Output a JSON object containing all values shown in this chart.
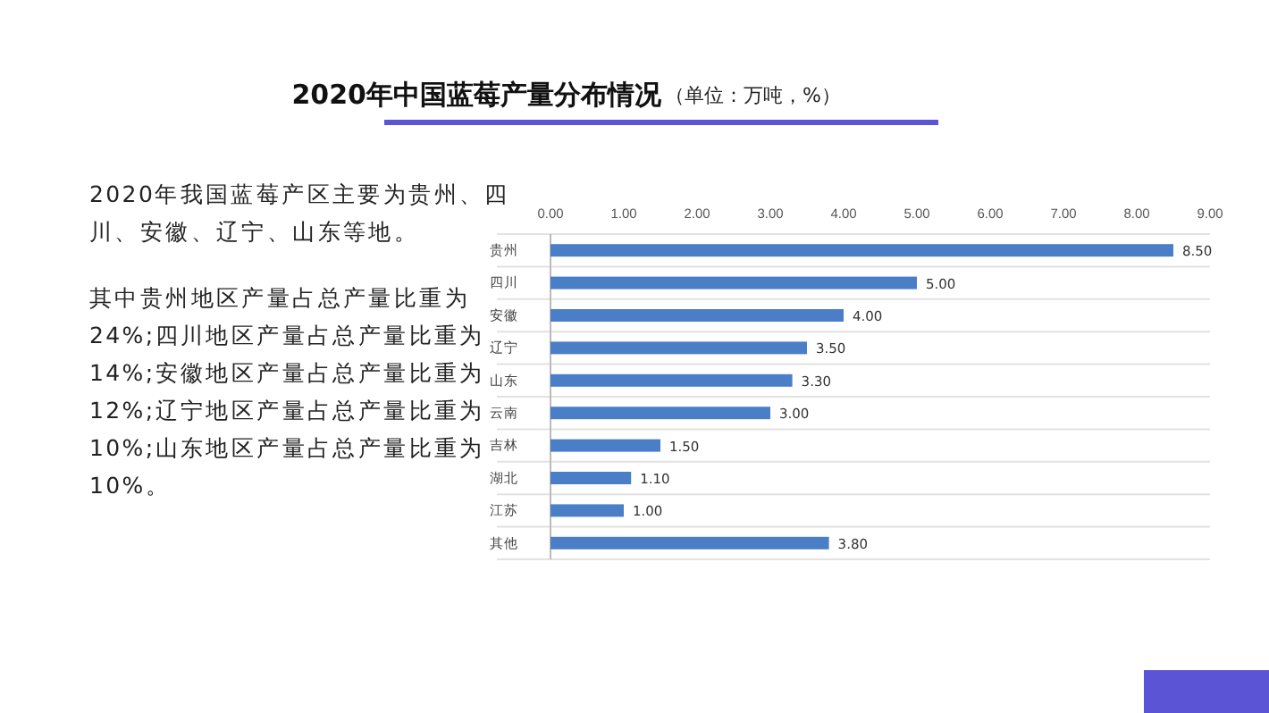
{
  "chart_data": {
    "type": "bar",
    "orientation": "horizontal",
    "title": "2020年中国蓝莓产量分布情况",
    "subtitle": "（单位：万吨，%）",
    "categories": [
      "贵州",
      "四川",
      "安徽",
      "辽宁",
      "山东",
      "云南",
      "吉林",
      "湖北",
      "江苏",
      "其他"
    ],
    "values": [
      8.5,
      5.0,
      4.0,
      3.5,
      3.3,
      3.0,
      1.5,
      1.1,
      1.0,
      3.8
    ],
    "value_labels": [
      "8.50",
      "5.00",
      "4.00",
      "3.50",
      "3.30",
      "3.00",
      "1.50",
      "1.10",
      "1.00",
      "3.80"
    ],
    "color": "#4a7fc8",
    "xlim": [
      0,
      9
    ],
    "xticks": [
      {
        "value": 0,
        "label": "0.00"
      },
      {
        "value": 1,
        "label": "1.00"
      },
      {
        "value": 2,
        "label": "2.00"
      },
      {
        "value": 3,
        "label": "3.00"
      },
      {
        "value": 4,
        "label": "4.00"
      },
      {
        "value": 5,
        "label": "5.00"
      },
      {
        "value": 6,
        "label": "6.00"
      },
      {
        "value": 7,
        "label": "7.00"
      },
      {
        "value": 8,
        "label": "8.00"
      },
      {
        "value": 9,
        "label": "9.00"
      }
    ],
    "grid": "y",
    "annotations": [
      "2020年我国蓝莓产区主要为贵州、四川、安徽、辽宁、山东等地。",
      "其中贵州地区产量占总产量比重为24%;四川地区产量占总产量比重为14%;安徽地区产量占总产量比重为12%;辽宁地区产量占总产量比重为10%;山东地区产量占总产量比重为10%。"
    ]
  }
}
